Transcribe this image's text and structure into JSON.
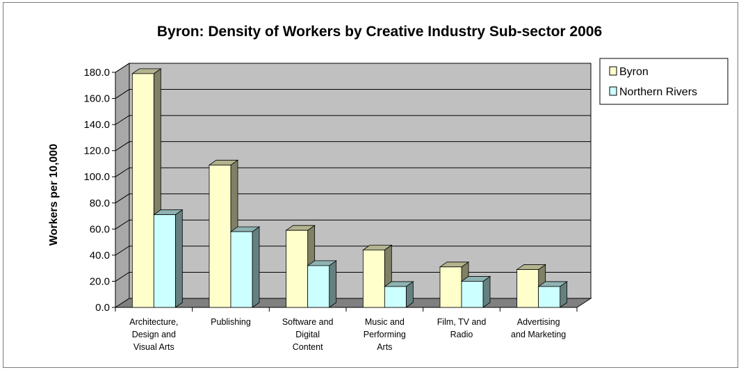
{
  "chart_data": {
    "type": "bar",
    "title": "Byron: Density of Workers by Creative Industry Sub-sector 2006",
    "xlabel": "",
    "ylabel": "Workers per 10,000",
    "ylim": [
      0,
      180
    ],
    "yticks": [
      "0.0",
      "20.0",
      "40.0",
      "60.0",
      "80.0",
      "100.0",
      "120.0",
      "140.0",
      "160.0",
      "180.0"
    ],
    "categories": [
      [
        "Architecture,",
        "Design and",
        "Visual Arts"
      ],
      [
        "Publishing"
      ],
      [
        "Software and",
        "Digital",
        "Content"
      ],
      [
        "Music and",
        "Performing",
        "Arts"
      ],
      [
        "Film, TV and",
        "Radio"
      ],
      [
        "Advertising",
        "and Marketing"
      ]
    ],
    "series": [
      {
        "name": "Byron",
        "values": [
          179,
          109,
          59,
          44,
          31,
          29
        ],
        "color": "#ffffcc"
      },
      {
        "name": "Northern Rivers",
        "values": [
          71,
          58,
          32,
          16,
          20,
          16
        ],
        "color": "#ccffff"
      }
    ],
    "grid": true,
    "legend_position": "top-right",
    "colors": {
      "wall": "#c0c0c0",
      "side_wall": "#a8a8a8",
      "floor": "#808080",
      "gridline": "#000000"
    }
  }
}
